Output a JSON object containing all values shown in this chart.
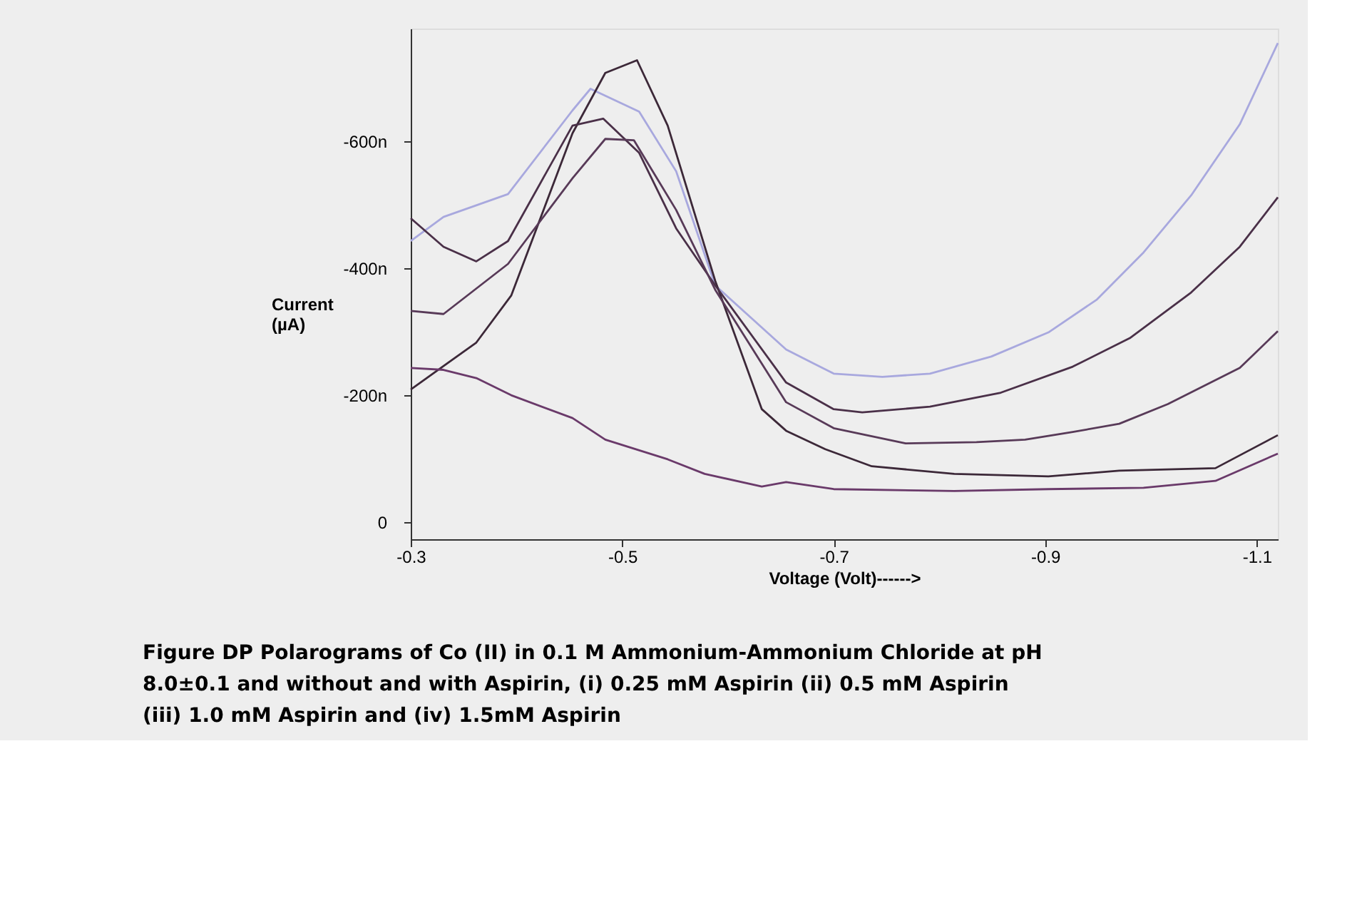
{
  "chart_data": {
    "type": "line",
    "xlabel": "Voltage (Volt)------>",
    "ylabel": "Current (µA)",
    "xlim": [
      -0.3,
      -1.12
    ],
    "xticks": [
      -0.3,
      -0.5,
      -0.7,
      -0.9,
      -1.1
    ],
    "ylim": [
      27,
      -778
    ],
    "yticks": [
      {
        "value": 0,
        "label": "0"
      },
      {
        "value": -200,
        "label": "-200n"
      },
      {
        "value": -400,
        "label": "-400n"
      },
      {
        "value": -600,
        "label": "-600n"
      }
    ],
    "grid": false,
    "legend": false,
    "marker": "none",
    "line_style": "solid",
    "annotations": [
      "Figure      DP Polarograms of Co (II) in 0.1 M Ammonium-Ammonium Chloride at pH 8.0±0.1 and without and    with Aspirin, (i) 0.25 mM Aspirin (ii) 0.5 mM Aspirin (iii) 1.0 mM Aspirin and (iv) 1.5mM Aspirin"
    ],
    "series": [
      {
        "color": "#a8a8de",
        "x": [
          -0.3,
          -0.331,
          -0.392,
          -0.453,
          -0.47,
          -0.516,
          -0.551,
          -0.588,
          -0.655,
          -0.7,
          -0.746,
          -0.791,
          -0.849,
          -0.903,
          -0.949,
          -0.993,
          -1.038,
          -1.084,
          -1.12
        ],
        "values": [
          -443,
          -481,
          -517,
          -649,
          -683,
          -647,
          -553,
          -373,
          -272,
          -234,
          -229,
          -234,
          -261,
          -299,
          -351,
          -425,
          -515,
          -627,
          -755
        ]
      },
      {
        "color": "#3c2838",
        "x": [
          -0.3,
          -0.362,
          -0.395,
          -0.453,
          -0.484,
          -0.514,
          -0.543,
          -0.588,
          -0.632,
          -0.655,
          -0.692,
          -0.736,
          -0.814,
          -0.903,
          -0.97,
          -1.061,
          -1.12
        ],
        "values": [
          -209,
          -283,
          -357,
          -613,
          -708,
          -728,
          -625,
          -380,
          -178,
          -144,
          -115,
          -88,
          -76,
          -72,
          -81,
          -85,
          -137
        ]
      },
      {
        "color": "#4a3048",
        "x": [
          -0.3,
          -0.331,
          -0.362,
          -0.392,
          -0.453,
          -0.482,
          -0.516,
          -0.551,
          -0.588,
          -0.655,
          -0.7,
          -0.727,
          -0.791,
          -0.858,
          -0.926,
          -0.98,
          -1.038,
          -1.084,
          -1.12
        ],
        "values": [
          -479,
          -434,
          -411,
          -443,
          -625,
          -636,
          -582,
          -463,
          -373,
          -220,
          -178,
          -173,
          -182,
          -204,
          -245,
          -290,
          -362,
          -434,
          -512
        ]
      },
      {
        "color": "#583a58",
        "x": [
          -0.3,
          -0.331,
          -0.392,
          -0.453,
          -0.484,
          -0.511,
          -0.551,
          -0.588,
          -0.655,
          -0.7,
          -0.768,
          -0.835,
          -0.881,
          -0.926,
          -0.97,
          -1.016,
          -1.084,
          -1.12
        ],
        "values": [
          -333,
          -328,
          -407,
          -542,
          -604,
          -602,
          -492,
          -366,
          -189,
          -148,
          -124,
          -126,
          -130,
          -142,
          -155,
          -186,
          -243,
          -301
        ]
      },
      {
        "color": "#6a3a6a",
        "x": [
          -0.3,
          -0.331,
          -0.362,
          -0.395,
          -0.453,
          -0.484,
          -0.543,
          -0.578,
          -0.632,
          -0.655,
          -0.7,
          -0.814,
          -0.903,
          -0.993,
          -1.061,
          -1.12
        ],
        "values": [
          -243,
          -240,
          -227,
          -200,
          -164,
          -130,
          -99,
          -76,
          -56,
          -63,
          -52,
          -49,
          -52,
          -54,
          -65,
          -108
        ]
      }
    ]
  }
}
